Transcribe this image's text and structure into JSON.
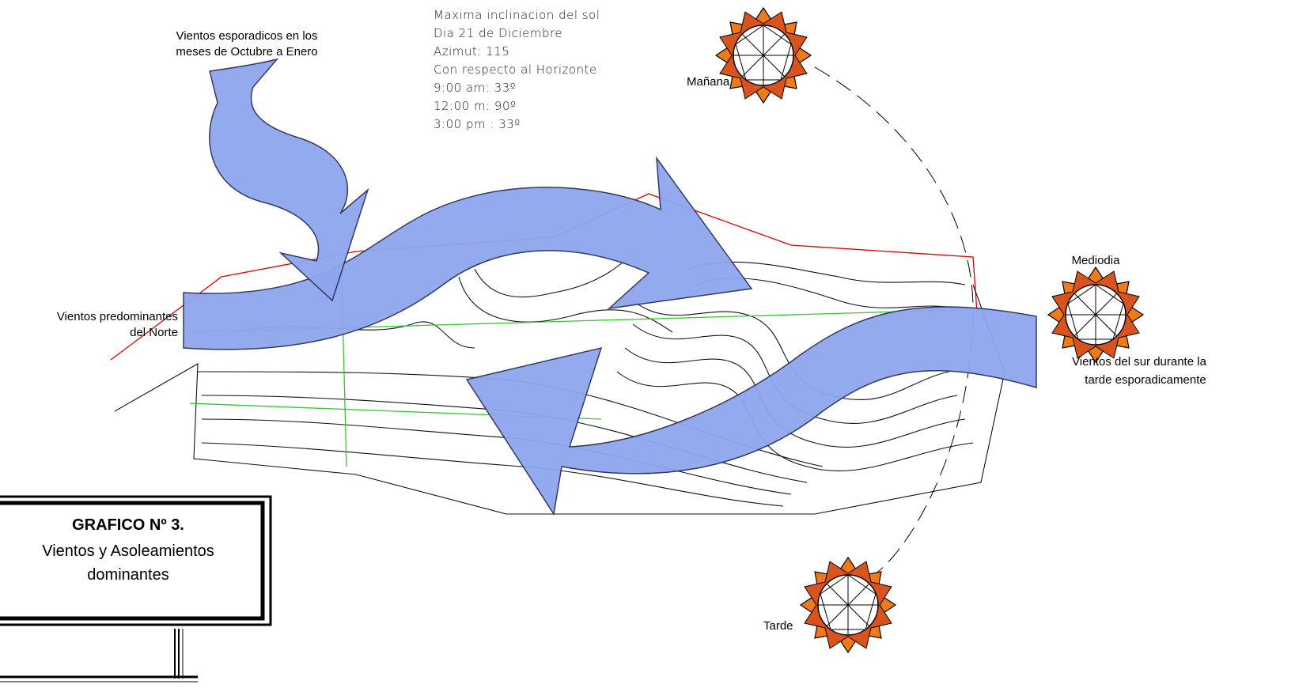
{
  "winds_top": [
    "Vientos esporadicos en los",
    "meses de Octubre a Enero"
  ],
  "sun_info": [
    "Maxima inclinacion del sol",
    "Dia 21   de Diciembre",
    "Azimut: 115",
    "Con respecto al Horizonte",
    "9:00 am: 33º",
    "12:00 m: 90º",
    "3:00 pm : 33º"
  ],
  "suns": {
    "morning": "Mañana",
    "noon": "Mediodia",
    "afternoon": "Tarde"
  },
  "winds_north": [
    "Vientos predominantes",
    "del Norte"
  ],
  "winds_south": [
    "Vientos del sur durante la",
    "tarde esporadicamente"
  ],
  "title_box": {
    "number": "GRAFICO Nº 3.",
    "lines": [
      "Vientos y Asoleamientos",
      "dominantes"
    ]
  }
}
